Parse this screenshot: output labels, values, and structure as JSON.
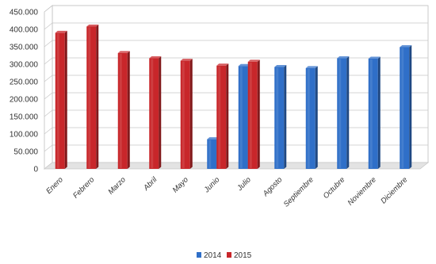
{
  "chart_data": {
    "type": "bar",
    "style": "3d-clustered-column",
    "categories": [
      "Enero",
      "Febrero",
      "Marzo",
      "Abril",
      "Mayo",
      "Junio",
      "Julio",
      "Agosto",
      "Septiembre",
      "Octubre",
      "Noviembre",
      "Diciembre"
    ],
    "series": [
      {
        "name": "2014",
        "color": "#2f6fc8",
        "values": [
          null,
          null,
          null,
          null,
          null,
          85000,
          295000,
          292000,
          289000,
          317000,
          316000,
          349000
        ]
      },
      {
        "name": "2015",
        "color": "#c8262a",
        "values": [
          390000,
          408000,
          332000,
          317000,
          310000,
          296000,
          307000,
          null,
          null,
          null,
          null,
          null
        ]
      }
    ],
    "y_ticks": [
      "0",
      "50.000",
      "100.000",
      "150.000",
      "200.000",
      "250.000",
      "300.000",
      "350.000",
      "400.000",
      "450.000"
    ],
    "ylim": [
      0,
      450000
    ],
    "grid": true,
    "legend_position": "bottom-center",
    "title": "",
    "xlabel": "",
    "ylabel": ""
  }
}
